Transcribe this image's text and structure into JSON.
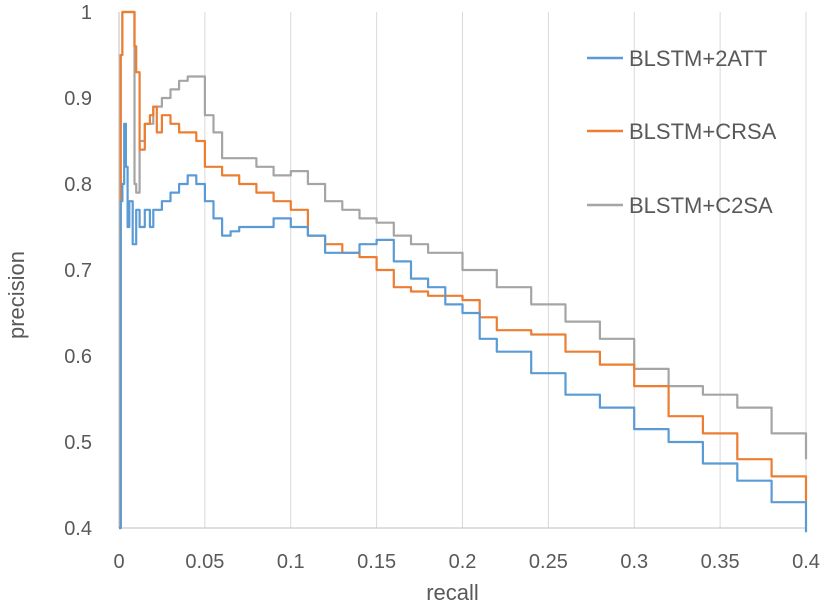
{
  "chart_data": {
    "type": "line",
    "title": "",
    "xlabel": "recall",
    "ylabel": "precision",
    "xlim": [
      0,
      0.4
    ],
    "ylim": [
      0.4,
      1
    ],
    "x_ticks": [
      "0",
      "0.05",
      "0.1",
      "0.15",
      "0.2",
      "0.25",
      "0.3",
      "0.35",
      "0.4"
    ],
    "y_ticks": [
      "0.4",
      "0.5",
      "0.6",
      "0.7",
      "0.8",
      "0.9",
      "1"
    ],
    "grid": "vertical",
    "legend_position": "top-right",
    "series": [
      {
        "name": "BLSTM+2ATT",
        "color": "#5b9bd5",
        "x": [
          0,
          0.001,
          0.002,
          0.003,
          0.004,
          0.005,
          0.006,
          0.008,
          0.01,
          0.012,
          0.015,
          0.018,
          0.02,
          0.025,
          0.03,
          0.035,
          0.04,
          0.045,
          0.05,
          0.055,
          0.06,
          0.065,
          0.07,
          0.08,
          0.09,
          0.1,
          0.11,
          0.12,
          0.13,
          0.14,
          0.15,
          0.16,
          0.17,
          0.18,
          0.19,
          0.2,
          0.21,
          0.22,
          0.24,
          0.26,
          0.28,
          0.3,
          0.32,
          0.34,
          0.36,
          0.38,
          0.4
        ],
        "y": [
          0.4,
          0.78,
          0.8,
          0.87,
          0.82,
          0.75,
          0.78,
          0.73,
          0.77,
          0.75,
          0.77,
          0.75,
          0.77,
          0.78,
          0.79,
          0.8,
          0.81,
          0.8,
          0.78,
          0.76,
          0.74,
          0.745,
          0.75,
          0.75,
          0.76,
          0.75,
          0.74,
          0.72,
          0.72,
          0.73,
          0.735,
          0.71,
          0.69,
          0.68,
          0.66,
          0.65,
          0.62,
          0.605,
          0.58,
          0.555,
          0.54,
          0.515,
          0.5,
          0.475,
          0.455,
          0.43,
          0.395
        ]
      },
      {
        "name": "BLSTM+CRSA",
        "color": "#ed7d31",
        "x": [
          0,
          0.001,
          0.002,
          0.005,
          0.008,
          0.009,
          0.01,
          0.012,
          0.015,
          0.018,
          0.02,
          0.022,
          0.025,
          0.03,
          0.035,
          0.04,
          0.045,
          0.05,
          0.055,
          0.06,
          0.07,
          0.08,
          0.09,
          0.1,
          0.11,
          0.12,
          0.13,
          0.14,
          0.15,
          0.16,
          0.17,
          0.18,
          0.19,
          0.2,
          0.21,
          0.22,
          0.24,
          0.26,
          0.28,
          0.3,
          0.32,
          0.34,
          0.36,
          0.38,
          0.4
        ],
        "y": [
          0.4,
          0.95,
          1.0,
          1.0,
          1.0,
          0.96,
          0.93,
          0.84,
          0.87,
          0.88,
          0.89,
          0.86,
          0.88,
          0.87,
          0.86,
          0.86,
          0.85,
          0.82,
          0.82,
          0.81,
          0.8,
          0.79,
          0.78,
          0.77,
          0.74,
          0.73,
          0.72,
          0.715,
          0.7,
          0.68,
          0.675,
          0.67,
          0.67,
          0.665,
          0.645,
          0.63,
          0.625,
          0.605,
          0.59,
          0.565,
          0.53,
          0.51,
          0.48,
          0.46,
          0.43
        ]
      },
      {
        "name": "BLSTM+C2SA",
        "color": "#a5a5a5",
        "x": [
          0,
          0.001,
          0.002,
          0.005,
          0.008,
          0.009,
          0.01,
          0.012,
          0.015,
          0.02,
          0.025,
          0.03,
          0.035,
          0.04,
          0.045,
          0.05,
          0.055,
          0.06,
          0.07,
          0.08,
          0.09,
          0.1,
          0.11,
          0.12,
          0.13,
          0.14,
          0.15,
          0.16,
          0.17,
          0.18,
          0.2,
          0.22,
          0.24,
          0.26,
          0.28,
          0.3,
          0.32,
          0.34,
          0.36,
          0.38,
          0.4
        ],
        "y": [
          0.4,
          0.95,
          1.0,
          1.0,
          1.0,
          0.8,
          0.79,
          0.85,
          0.87,
          0.89,
          0.9,
          0.91,
          0.92,
          0.925,
          0.925,
          0.88,
          0.86,
          0.83,
          0.83,
          0.82,
          0.81,
          0.815,
          0.8,
          0.78,
          0.77,
          0.76,
          0.755,
          0.74,
          0.73,
          0.72,
          0.7,
          0.68,
          0.66,
          0.64,
          0.62,
          0.585,
          0.565,
          0.555,
          0.54,
          0.51,
          0.48
        ]
      }
    ]
  }
}
